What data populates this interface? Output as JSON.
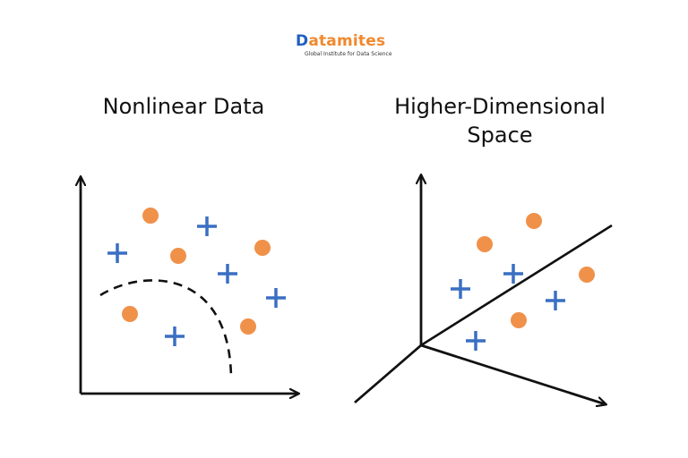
{
  "logo": {
    "brand_first": "D",
    "brand_rest": "atamites",
    "tagline": "Global Institute for Data Science"
  },
  "left_panel": {
    "title": "Nonlinear Data"
  },
  "right_panel": {
    "title_line1": "Higher-Dimensional",
    "title_line2": "Space"
  },
  "colors": {
    "circle": "#f0914a",
    "plus": "#3a6fc2",
    "axis": "#111111",
    "brand_blue": "#1f5fbf",
    "brand_orange": "#f0892e"
  },
  "icons": {
    "circle_marker": "orange-circle",
    "plus_marker": "blue-plus"
  }
}
